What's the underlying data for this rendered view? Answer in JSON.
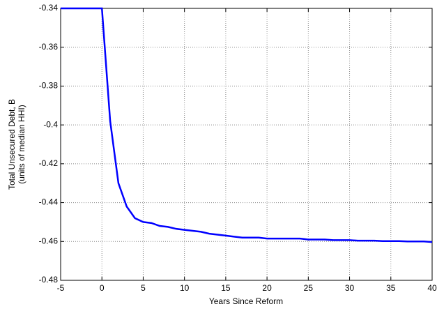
{
  "chart_data": {
    "type": "line",
    "xlabel": "Years Since Reform",
    "ylabel": [
      "Total Unsecured Debt, B",
      "(units of median HHI)"
    ],
    "x": [
      -5,
      0,
      1,
      2,
      3,
      4,
      5,
      6,
      7,
      8,
      9,
      10,
      11,
      12,
      13,
      14,
      15,
      16,
      17,
      18,
      19,
      20,
      21,
      22,
      23,
      24,
      25,
      26,
      27,
      28,
      29,
      30,
      31,
      32,
      33,
      34,
      35,
      36,
      37,
      38,
      39,
      40
    ],
    "series": [
      {
        "color": "#0000ff",
        "values": [
          -0.34,
          -0.34,
          -0.398,
          -0.43,
          -0.442,
          -0.448,
          -0.45,
          -0.4505,
          -0.452,
          -0.4525,
          -0.4535,
          -0.454,
          -0.4545,
          -0.455,
          -0.456,
          -0.4565,
          -0.457,
          -0.4575,
          -0.458,
          -0.458,
          -0.458,
          -0.4585,
          -0.4585,
          -0.4585,
          -0.4585,
          -0.4585,
          -0.459,
          -0.459,
          -0.459,
          -0.4593,
          -0.4593,
          -0.4593,
          -0.4596,
          -0.4596,
          -0.4596,
          -0.4598,
          -0.4598,
          -0.4598,
          -0.46,
          -0.46,
          -0.46,
          -0.4603
        ]
      }
    ],
    "xlim": [
      -5,
      40
    ],
    "xticks": [
      -5,
      0,
      5,
      10,
      15,
      20,
      25,
      30,
      35,
      40
    ],
    "ylim": [
      -0.48,
      -0.34
    ],
    "yticks": [
      -0.48,
      -0.46,
      -0.44,
      -0.42,
      -0.4,
      -0.38,
      -0.36,
      -0.34
    ],
    "grid": true
  }
}
